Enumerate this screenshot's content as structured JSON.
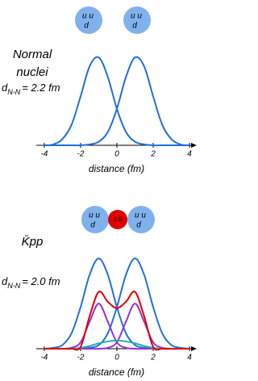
{
  "chart_data": [
    {
      "type": "line",
      "title_lines": [
        "Normal",
        "nuclei"
      ],
      "distance": {
        "symbol": "d",
        "subscript": "N-N",
        "value": "= 2.2 fm"
      },
      "particles": [
        {
          "top": "u u",
          "bottom": "d"
        },
        {
          "top": "u u",
          "bottom": "d"
        }
      ],
      "xlabel": "distance  (fm)",
      "x": [
        -4,
        -3.5,
        -3,
        -2.5,
        -2,
        -1.5,
        -1,
        -0.5,
        0,
        0.5,
        1,
        1.5,
        2,
        2.5,
        3,
        3.5,
        4
      ],
      "series": [
        {
          "color": "#1f6fe0",
          "values": [
            0,
            0.01,
            0.07,
            0.23,
            0.55,
            0.89,
            0.99,
            0.77,
            0.41,
            0.15,
            0.04,
            0.01,
            0,
            0,
            0,
            0,
            0
          ]
        },
        {
          "color": "#1f6fe0",
          "values": [
            0,
            0,
            0,
            0,
            0,
            0.01,
            0.04,
            0.15,
            0.41,
            0.77,
            0.99,
            0.89,
            0.55,
            0.23,
            0.07,
            0.01,
            0
          ]
        }
      ],
      "xlim": [
        -4.44,
        4.22
      ],
      "ylim": [
        0,
        1.1
      ],
      "xticks": [
        -4,
        -2,
        0,
        2,
        4
      ]
    },
    {
      "type": "line",
      "title_lines": [
        "K̄pp"
      ],
      "distance": {
        "symbol": "d",
        "subscript": "N-N",
        "value": "= 2.0 fm"
      },
      "particles": [
        {
          "top": "u u",
          "bottom": "d"
        },
        {
          "top": "s ū",
          "bottom": ""
        },
        {
          "top": "u u",
          "bottom": "d"
        }
      ],
      "xlabel": "distance  (fm)",
      "x": [
        -4,
        -3.5,
        -3,
        -2.5,
        -2,
        -1.5,
        -1,
        -0.5,
        0,
        0.5,
        1,
        1.5,
        2,
        2.5,
        3,
        3.5,
        4
      ],
      "series": [
        {
          "color": "#1f6fe0",
          "values": [
            0,
            0.01,
            0.04,
            0.17,
            0.46,
            0.82,
            1,
            0.82,
            0.46,
            0.17,
            0.04,
            0.01,
            0,
            0,
            0,
            0,
            0
          ]
        },
        {
          "color": "#1f6fe0",
          "values": [
            0,
            0,
            0,
            0,
            0,
            0.01,
            0.04,
            0.17,
            0.46,
            0.82,
            1,
            0.82,
            0.46,
            0.17,
            0.04,
            0.01,
            0
          ]
        },
        {
          "color": "#9a30d8",
          "values": [
            0,
            0,
            0,
            0.01,
            0.07,
            0.3,
            0.5,
            0.3,
            0.07,
            0.01,
            0,
            0,
            0,
            0,
            0,
            0,
            0
          ]
        },
        {
          "color": "#9a30d8",
          "values": [
            0,
            0,
            0,
            0,
            0,
            0,
            0,
            0.01,
            0.07,
            0.3,
            0.5,
            0.3,
            0.07,
            0.01,
            0,
            0,
            0
          ]
        },
        {
          "color": "#20b0a0",
          "values": [
            0,
            0,
            0,
            0,
            0.01,
            0.03,
            0.06,
            0.08,
            0.09,
            0.08,
            0.06,
            0.03,
            0.01,
            0,
            0,
            0,
            0
          ]
        },
        {
          "color": "#e00000",
          "values": [
            0,
            0,
            0,
            0,
            0.02,
            0.36,
            0.63,
            0.52,
            0.45,
            0.52,
            0.63,
            0.36,
            0.02,
            0,
            0,
            0,
            0
          ]
        }
      ],
      "xlim": [
        -4.44,
        4.22
      ],
      "ylim": [
        0,
        1.1
      ],
      "xticks": [
        -4,
        -2,
        0,
        2,
        4
      ]
    }
  ]
}
